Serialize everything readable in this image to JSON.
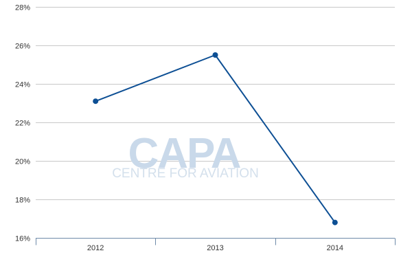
{
  "watermark": {
    "main": "CAPA",
    "sub": "CENTRE FOR AVIATION"
  },
  "chart_data": {
    "type": "line",
    "title": "",
    "xlabel": "",
    "ylabel": "",
    "categories": [
      "2012",
      "2013",
      "2014"
    ],
    "series": [
      {
        "values": [
          23.1,
          25.5,
          16.8
        ],
        "color": "#0d4f94"
      }
    ],
    "ylim": [
      16,
      28
    ],
    "yticks": [
      16,
      18,
      20,
      22,
      24,
      26,
      28
    ],
    "ytick_labels": [
      "16%",
      "18%",
      "20%",
      "22%",
      "24%",
      "26%",
      "28%"
    ],
    "grid": true,
    "legend": "none",
    "colors": {
      "grid": "#c8c8c8",
      "axis": "#6d8aa8",
      "line": "#0d4f94"
    }
  }
}
